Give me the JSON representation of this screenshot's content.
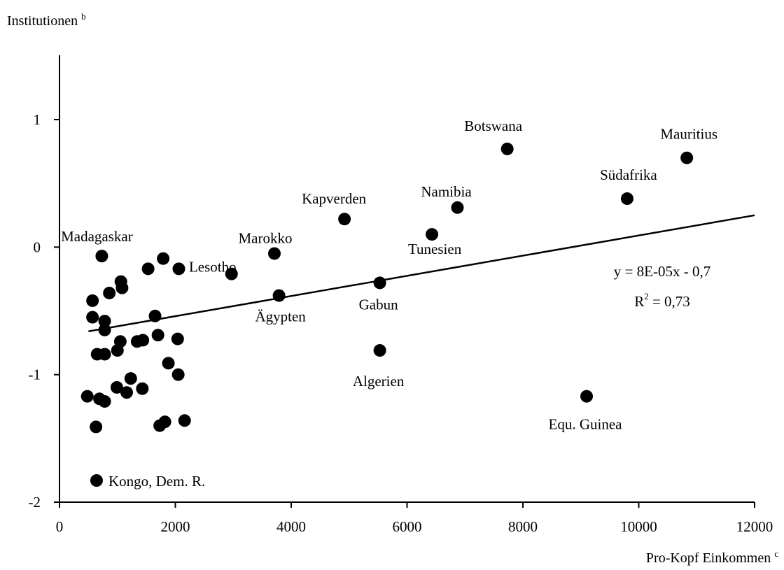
{
  "chart_data": {
    "type": "scatter",
    "ylabel": "Institutionen",
    "ylabel_sup": "b",
    "xlabel": "Pro-Kopf Einkommen",
    "xlabel_sup": "c",
    "xlim": [
      0,
      12000
    ],
    "ylim": [
      -2,
      1.5
    ],
    "xticks": [
      0,
      2000,
      4000,
      6000,
      8000,
      10000,
      12000
    ],
    "yticks": [
      -2,
      -1,
      0,
      1
    ],
    "grid": false,
    "legend": "none",
    "marker_color": "#000000",
    "points": [
      {
        "x": 10830,
        "y": 0.7,
        "label": "Mauritius"
      },
      {
        "x": 7730,
        "y": 0.77,
        "label": "Botswana"
      },
      {
        "x": 9800,
        "y": 0.38,
        "label": "Südafrika"
      },
      {
        "x": 6870,
        "y": 0.31,
        "label": "Namibia"
      },
      {
        "x": 4920,
        "y": 0.22,
        "label": "Kapverden"
      },
      {
        "x": 6430,
        "y": 0.1,
        "label": "Tunesien"
      },
      {
        "x": 3710,
        "y": -0.05,
        "label": "Marokko"
      },
      {
        "x": 2970,
        "y": -0.21,
        "label": "Lesotho"
      },
      {
        "x": 3790,
        "y": -0.38,
        "label": "Ägypten"
      },
      {
        "x": 5530,
        "y": -0.28,
        "label": "Gabun"
      },
      {
        "x": 5530,
        "y": -0.81,
        "label": "Algerien"
      },
      {
        "x": 9100,
        "y": -1.17,
        "label": "Equ. Guinea"
      },
      {
        "x": 730,
        "y": -0.07,
        "label": "Madagaskar"
      },
      {
        "x": 640,
        "y": -1.83,
        "label": "Kongo, Dem. R."
      },
      {
        "x": 1790,
        "y": -0.09
      },
      {
        "x": 1530,
        "y": -0.17
      },
      {
        "x": 2060,
        "y": -0.17
      },
      {
        "x": 1060,
        "y": -0.27
      },
      {
        "x": 1080,
        "y": -0.32
      },
      {
        "x": 860,
        "y": -0.36
      },
      {
        "x": 570,
        "y": -0.42
      },
      {
        "x": 570,
        "y": -0.55
      },
      {
        "x": 780,
        "y": -0.58
      },
      {
        "x": 1650,
        "y": -0.54
      },
      {
        "x": 780,
        "y": -0.65
      },
      {
        "x": 1700,
        "y": -0.69
      },
      {
        "x": 1050,
        "y": -0.74
      },
      {
        "x": 1340,
        "y": -0.74
      },
      {
        "x": 1440,
        "y": -0.73
      },
      {
        "x": 2040,
        "y": -0.72
      },
      {
        "x": 1000,
        "y": -0.81
      },
      {
        "x": 650,
        "y": -0.84
      },
      {
        "x": 780,
        "y": -0.84
      },
      {
        "x": 1880,
        "y": -0.91
      },
      {
        "x": 2050,
        "y": -1.0
      },
      {
        "x": 1230,
        "y": -1.03
      },
      {
        "x": 990,
        "y": -1.1
      },
      {
        "x": 1430,
        "y": -1.11
      },
      {
        "x": 1160,
        "y": -1.14
      },
      {
        "x": 480,
        "y": -1.17
      },
      {
        "x": 690,
        "y": -1.19
      },
      {
        "x": 780,
        "y": -1.21
      },
      {
        "x": 1820,
        "y": -1.37
      },
      {
        "x": 1730,
        "y": -1.4
      },
      {
        "x": 2160,
        "y": -1.36
      },
      {
        "x": 630,
        "y": -1.41
      }
    ],
    "trendline": {
      "x_start": 500,
      "x_end": 12000,
      "slope": 7.913e-05,
      "intercept": -0.7,
      "equation": "y = 8E-05x - 0,7",
      "r2_prefix": "R",
      "r2_sup": "2",
      "r2_value": " = 0,73"
    }
  }
}
